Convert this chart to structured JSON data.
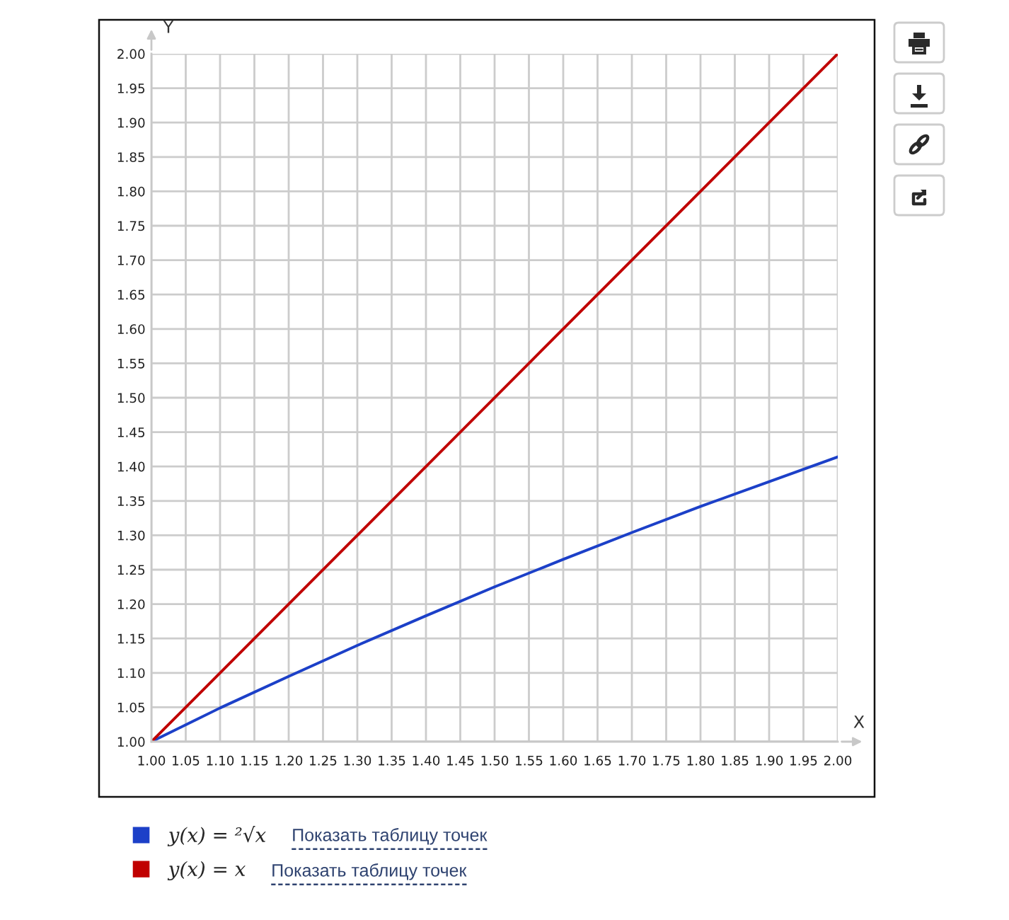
{
  "chart_data": {
    "type": "line",
    "xlabel": "X",
    "ylabel": "Y",
    "series": [
      {
        "name": "y(x) = ²√x",
        "color": "#1c40c8",
        "x": [
          1.0,
          1.1,
          1.2,
          1.3,
          1.4,
          1.5,
          1.6,
          1.7,
          1.8,
          1.9,
          2.0
        ],
        "values": [
          1.0,
          1.049,
          1.095,
          1.14,
          1.183,
          1.225,
          1.265,
          1.304,
          1.342,
          1.378,
          1.414
        ]
      },
      {
        "name": "y(x) = x",
        "color": "#c00000",
        "x": [
          1.0,
          2.0
        ],
        "values": [
          1.0,
          2.0
        ]
      }
    ],
    "xlim": [
      1.0,
      2.0
    ],
    "ylim": [
      1.0,
      2.0
    ],
    "xticks": [
      {
        "value": 1.0,
        "label": "1.00"
      },
      {
        "value": 1.05,
        "label": "1.05"
      },
      {
        "value": 1.1,
        "label": "1.10"
      },
      {
        "value": 1.15,
        "label": "1.15"
      },
      {
        "value": 1.2,
        "label": "1.20"
      },
      {
        "value": 1.25,
        "label": "1.25"
      },
      {
        "value": 1.3,
        "label": "1.30"
      },
      {
        "value": 1.35,
        "label": "1.35"
      },
      {
        "value": 1.4,
        "label": "1.40"
      },
      {
        "value": 1.45,
        "label": "1.45"
      },
      {
        "value": 1.5,
        "label": "1.50"
      },
      {
        "value": 1.55,
        "label": "1.55"
      },
      {
        "value": 1.6,
        "label": "1.60"
      },
      {
        "value": 1.65,
        "label": "1.65"
      },
      {
        "value": 1.7,
        "label": "1.70"
      },
      {
        "value": 1.75,
        "label": "1.75"
      },
      {
        "value": 1.8,
        "label": "1.80"
      },
      {
        "value": 1.85,
        "label": "1.85"
      },
      {
        "value": 1.9,
        "label": "1.90"
      },
      {
        "value": 1.95,
        "label": "1.95"
      },
      {
        "value": 2.0,
        "label": "2.00"
      }
    ],
    "yticks": [
      {
        "value": 1.0,
        "label": "1.00"
      },
      {
        "value": 1.05,
        "label": "1.05"
      },
      {
        "value": 1.1,
        "label": "1.10"
      },
      {
        "value": 1.15,
        "label": "1.15"
      },
      {
        "value": 1.2,
        "label": "1.20"
      },
      {
        "value": 1.25,
        "label": "1.25"
      },
      {
        "value": 1.3,
        "label": "1.30"
      },
      {
        "value": 1.35,
        "label": "1.35"
      },
      {
        "value": 1.4,
        "label": "1.40"
      },
      {
        "value": 1.45,
        "label": "1.45"
      },
      {
        "value": 1.5,
        "label": "1.50"
      },
      {
        "value": 1.55,
        "label": "1.55"
      },
      {
        "value": 1.6,
        "label": "1.60"
      },
      {
        "value": 1.65,
        "label": "1.65"
      },
      {
        "value": 1.7,
        "label": "1.70"
      },
      {
        "value": 1.75,
        "label": "1.75"
      },
      {
        "value": 1.8,
        "label": "1.80"
      },
      {
        "value": 1.85,
        "label": "1.85"
      },
      {
        "value": 1.9,
        "label": "1.90"
      },
      {
        "value": 1.95,
        "label": "1.95"
      },
      {
        "value": 2.0,
        "label": "2.00"
      }
    ],
    "grid": true,
    "legend": "bottom left",
    "annotations": [
      "Показать таблицу точек",
      "Показать таблицу точек"
    ]
  }
}
